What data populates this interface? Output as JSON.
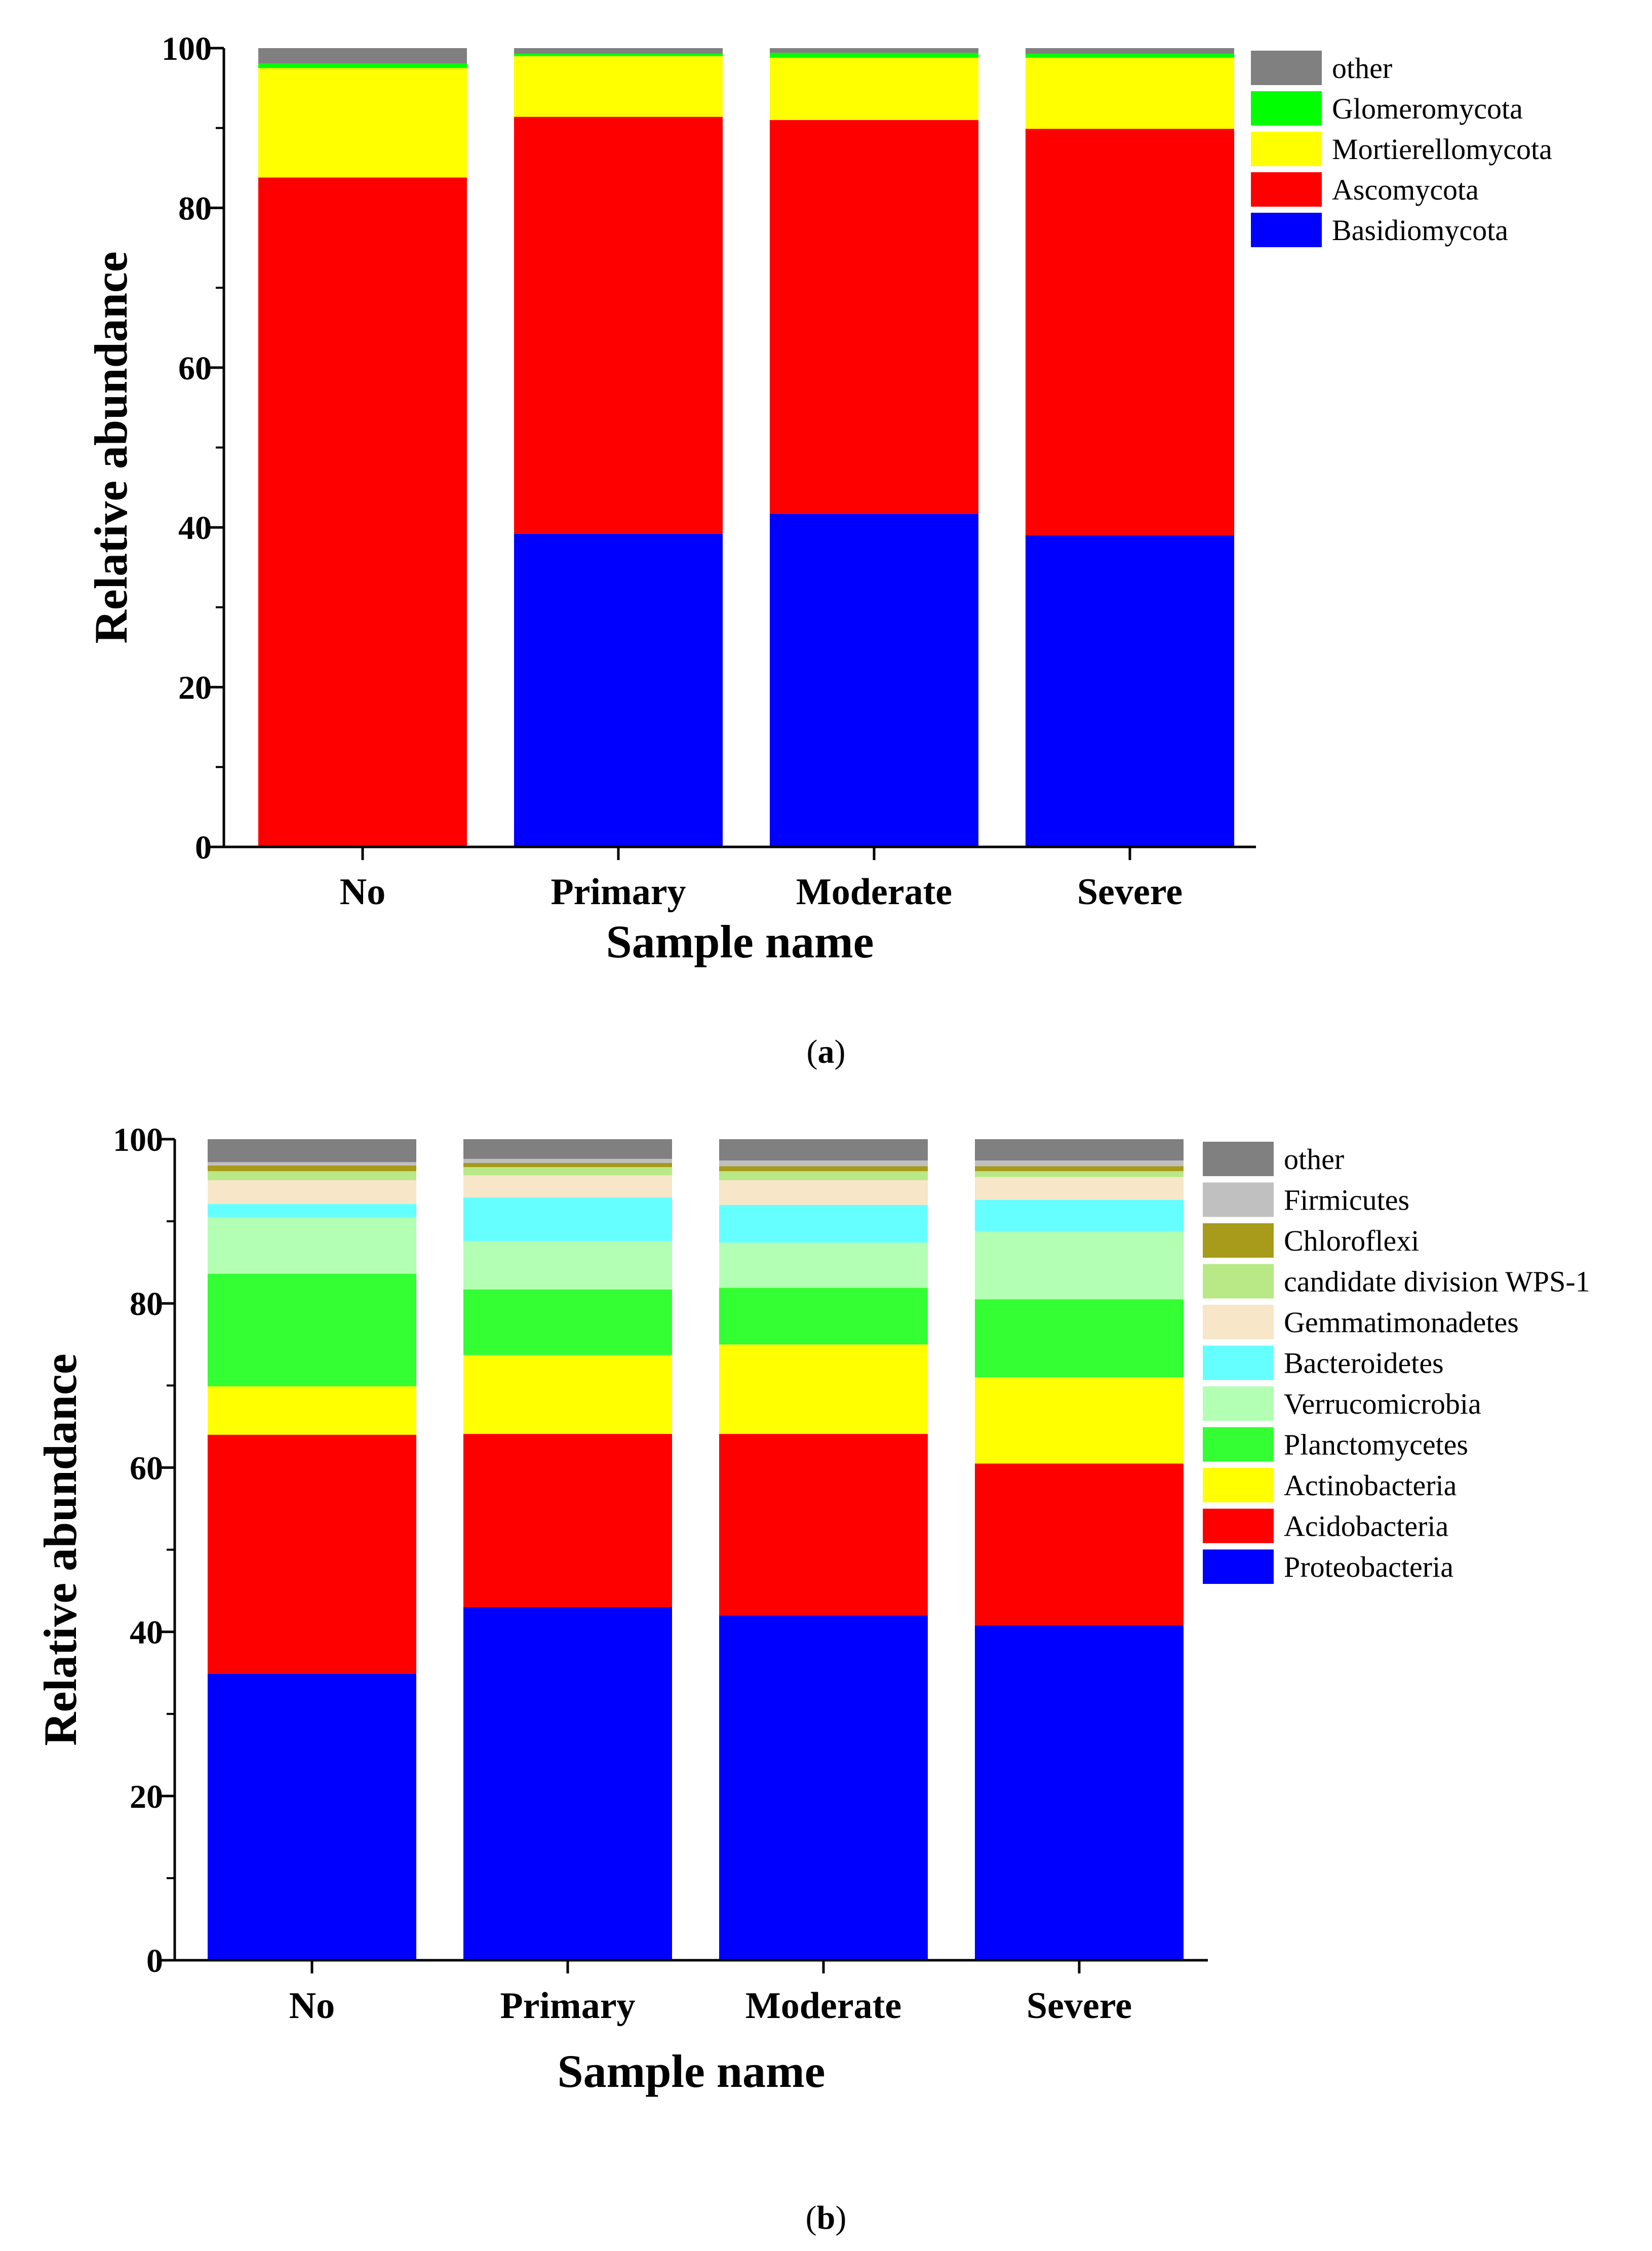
{
  "chart_data": [
    {
      "type": "bar",
      "stacked": true,
      "panel_label": "a",
      "xlabel": "Sample name",
      "ylabel": "Relative abundance",
      "ylim": [
        0,
        100
      ],
      "yticks": [
        0,
        20,
        40,
        60,
        80,
        100
      ],
      "categories": [
        "No",
        "Primary",
        "Moderate",
        "Severe"
      ],
      "series": [
        {
          "name": "Basidiomycota",
          "color": "#0000FF",
          "values": [
            0.0,
            39.2,
            41.7,
            39.0
          ]
        },
        {
          "name": "Ascomycota",
          "color": "#FF0000",
          "values": [
            83.8,
            52.2,
            49.3,
            50.9
          ]
        },
        {
          "name": "Mortierellomycota",
          "color": "#FFFF00",
          "values": [
            13.7,
            7.6,
            7.8,
            8.9
          ]
        },
        {
          "name": "Glomeromycota",
          "color": "#00FF00",
          "values": [
            0.6,
            0.3,
            0.6,
            0.5
          ]
        },
        {
          "name": "other",
          "color": "#808080",
          "values": [
            1.9,
            0.7,
            0.6,
            0.7
          ]
        }
      ],
      "legend_order": [
        "other",
        "Glomeromycota",
        "Mortierellomycota",
        "Ascomycota",
        "Basidiomycota"
      ],
      "legend": "top-right"
    },
    {
      "type": "bar",
      "stacked": true,
      "panel_label": "b",
      "xlabel": "Sample name",
      "ylabel": "Relative abundance",
      "ylim": [
        0,
        100
      ],
      "yticks": [
        0,
        20,
        40,
        60,
        80,
        100
      ],
      "categories": [
        "No",
        "Primary",
        "Moderate",
        "Severe"
      ],
      "series": [
        {
          "name": "Proteobacteria",
          "color": "#0000FF",
          "values": [
            34.9,
            43.0,
            42.0,
            40.8
          ]
        },
        {
          "name": "Acidobacteria",
          "color": "#FF0000",
          "values": [
            29.1,
            21.1,
            22.1,
            19.7
          ]
        },
        {
          "name": "Actinobacteria",
          "color": "#FFFF00",
          "values": [
            5.9,
            9.6,
            10.9,
            10.5
          ]
        },
        {
          "name": "Planctomycetes",
          "color": "#33FF33",
          "values": [
            13.7,
            8.0,
            6.9,
            9.5
          ]
        },
        {
          "name": "Verrucomicrobia",
          "color": "#B3FFB3",
          "values": [
            6.9,
            5.9,
            5.5,
            8.3
          ]
        },
        {
          "name": "Bacteroidetes",
          "color": "#66FFFF",
          "values": [
            1.6,
            5.3,
            4.6,
            3.8
          ]
        },
        {
          "name": "Gemmatimonadetes",
          "color": "#F7E6C8",
          "values": [
            2.9,
            2.7,
            3.0,
            2.8
          ]
        },
        {
          "name": "candidate division WPS-1",
          "color": "#B8E986",
          "values": [
            1.1,
            1.0,
            1.1,
            0.7
          ]
        },
        {
          "name": "Chloroflexi",
          "color": "#A89A1A",
          "values": [
            0.7,
            0.5,
            0.6,
            0.6
          ]
        },
        {
          "name": "Firmicutes",
          "color": "#C0C0C0",
          "values": [
            0.4,
            0.5,
            0.7,
            0.7
          ]
        },
        {
          "name": "other",
          "color": "#808080",
          "values": [
            2.8,
            2.4,
            2.6,
            2.6
          ]
        }
      ],
      "legend_order": [
        "other",
        "Firmicutes",
        "Chloroflexi",
        "candidate division WPS-1",
        "Gemmatimonadetes",
        "Bacteroidetes",
        "Verrucomicrobia",
        "Planctomycetes",
        "Actinobacteria",
        "Acidobacteria",
        "Proteobacteria"
      ],
      "legend": "top-right"
    }
  ],
  "captions": {
    "a": {
      "open": "(",
      "label": "a",
      "close": ")"
    },
    "b": {
      "open": "(",
      "label": "b",
      "close": ")"
    }
  }
}
